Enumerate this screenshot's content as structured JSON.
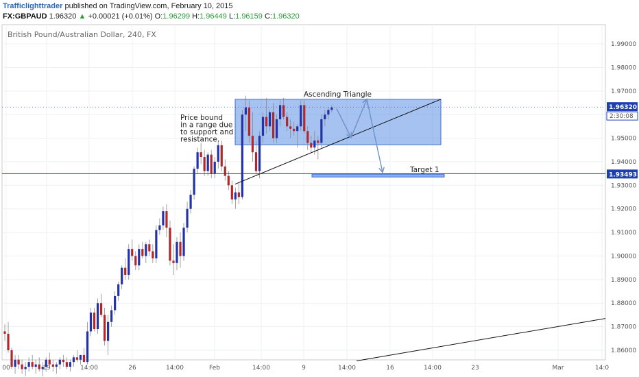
{
  "header": {
    "author": "Trafficlighttrader",
    "published_text": "published on TradingView.com, February 10, 2015",
    "symbol": "FX:GBPAUD",
    "last": "1.96320",
    "change": "+0.00021 (+0.01%)",
    "o_label": "O:",
    "o_value": "1.96299",
    "h_label": "H:",
    "h_value": "1.96449",
    "l_label": "L:",
    "l_value": "1.96159",
    "c_label": "C:",
    "c_value": "1.96320"
  },
  "chart_title": "British Pound/Australian Dollar, 240, FX",
  "price_tags": {
    "last_price": "1.96320",
    "countdown": "2:30:08",
    "target_price": "1.93493"
  },
  "annotations": {
    "range_note": [
      "Price bound",
      "in a range due",
      "to support and",
      "resistance."
    ],
    "pattern": "Ascending Triangle",
    "target": "Target 1"
  },
  "colors": {
    "bull": "#2233aa",
    "bear": "#b3262a",
    "zone": "#5b8fe6",
    "hline": "#1f3fb0",
    "green": "#2a9d3a"
  },
  "chart_data": {
    "type": "candlestick",
    "title": "British Pound/Australian Dollar, 240, FX",
    "ylim": [
      1.853,
      1.997
    ],
    "y_ticks": [
      "1.99000",
      "1.98000",
      "1.97000",
      "1.96000",
      "1.95000",
      "1.94000",
      "1.93000",
      "1.92000",
      "1.91000",
      "1.90000",
      "1.89000",
      "1.88000",
      "1.87000",
      "1.86000"
    ],
    "x_tick_labels": [
      "00",
      "19",
      "14:00",
      "26",
      "14:00",
      "Feb",
      "14:00",
      "9",
      "14:00",
      "16",
      "14:00",
      "23",
      "Mar",
      "14:0"
    ],
    "horizontal_level": 1.93493,
    "last_price": 1.9632,
    "range_zone": [
      1.9472,
      1.9665
    ],
    "target_zone": [
      1.9335,
      1.9347
    ],
    "ohlc": [
      [
        1.868,
        1.871,
        1.864,
        1.867
      ],
      [
        1.867,
        1.872,
        1.859,
        1.86
      ],
      [
        1.86,
        1.861,
        1.852,
        1.853
      ],
      [
        1.853,
        1.858,
        1.85,
        1.856
      ],
      [
        1.856,
        1.858,
        1.852,
        1.854
      ],
      [
        1.854,
        1.856,
        1.85,
        1.852
      ],
      [
        1.852,
        1.855,
        1.849,
        1.853
      ],
      [
        1.853,
        1.857,
        1.851,
        1.855
      ],
      [
        1.855,
        1.858,
        1.852,
        1.853
      ],
      [
        1.853,
        1.856,
        1.85,
        1.854
      ],
      [
        1.854,
        1.857,
        1.851,
        1.852
      ],
      [
        1.852,
        1.855,
        1.849,
        1.853
      ],
      [
        1.853,
        1.857,
        1.851,
        1.856
      ],
      [
        1.856,
        1.859,
        1.853,
        1.854
      ],
      [
        1.854,
        1.856,
        1.851,
        1.853
      ],
      [
        1.853,
        1.855,
        1.85,
        1.854
      ],
      [
        1.854,
        1.857,
        1.852,
        1.856
      ],
      [
        1.856,
        1.858,
        1.853,
        1.855
      ],
      [
        1.855,
        1.857,
        1.852,
        1.853
      ],
      [
        1.853,
        1.856,
        1.851,
        1.855
      ],
      [
        1.855,
        1.858,
        1.853,
        1.857
      ],
      [
        1.857,
        1.86,
        1.855,
        1.856
      ],
      [
        1.856,
        1.858,
        1.854,
        1.858
      ],
      [
        1.858,
        1.861,
        1.856,
        1.855
      ],
      [
        1.855,
        1.872,
        1.854,
        1.868
      ],
      [
        1.868,
        1.878,
        1.866,
        1.876
      ],
      [
        1.876,
        1.878,
        1.868,
        1.869
      ],
      [
        1.869,
        1.882,
        1.867,
        1.88
      ],
      [
        1.88,
        1.884,
        1.874,
        1.875
      ],
      [
        1.875,
        1.878,
        1.862,
        1.864
      ],
      [
        1.864,
        1.875,
        1.858,
        1.872
      ],
      [
        1.872,
        1.879,
        1.87,
        1.877
      ],
      [
        1.877,
        1.885,
        1.875,
        1.883
      ],
      [
        1.883,
        1.889,
        1.881,
        1.888
      ],
      [
        1.888,
        1.896,
        1.886,
        1.895
      ],
      [
        1.895,
        1.899,
        1.89,
        1.892
      ],
      [
        1.892,
        1.905,
        1.89,
        1.903
      ],
      [
        1.903,
        1.907,
        1.898,
        1.9
      ],
      [
        1.9,
        1.902,
        1.894,
        1.896
      ],
      [
        1.896,
        1.905,
        1.894,
        1.903
      ],
      [
        1.903,
        1.906,
        1.899,
        1.9
      ],
      [
        1.9,
        1.906,
        1.897,
        1.905
      ],
      [
        1.905,
        1.907,
        1.9,
        1.902
      ],
      [
        1.902,
        1.905,
        1.897,
        1.899
      ],
      [
        1.899,
        1.913,
        1.897,
        1.911
      ],
      [
        1.911,
        1.916,
        1.909,
        1.913
      ],
      [
        1.913,
        1.921,
        1.911,
        1.919
      ],
      [
        1.919,
        1.922,
        1.908,
        1.912
      ],
      [
        1.912,
        1.915,
        1.896,
        1.898
      ],
      [
        1.898,
        1.905,
        1.892,
        1.897
      ],
      [
        1.897,
        1.908,
        1.894,
        1.906
      ],
      [
        1.906,
        1.91,
        1.895,
        1.9
      ],
      [
        1.9,
        1.914,
        1.898,
        1.912
      ],
      [
        1.912,
        1.923,
        1.91,
        1.92
      ],
      [
        1.92,
        1.928,
        1.918,
        1.926
      ],
      [
        1.926,
        1.938,
        1.924,
        1.937
      ],
      [
        1.937,
        1.946,
        1.935,
        1.944
      ],
      [
        1.944,
        1.948,
        1.939,
        1.942
      ],
      [
        1.942,
        1.945,
        1.934,
        1.936
      ],
      [
        1.936,
        1.944,
        1.934,
        1.943
      ],
      [
        1.943,
        1.945,
        1.933,
        1.935
      ],
      [
        1.935,
        1.942,
        1.933,
        1.94
      ],
      [
        1.94,
        1.949,
        1.937,
        1.947
      ],
      [
        1.947,
        1.949,
        1.936,
        1.938
      ],
      [
        1.938,
        1.941,
        1.932,
        1.934
      ],
      [
        1.934,
        1.936,
        1.928,
        1.93
      ],
      [
        1.93,
        1.932,
        1.922,
        1.924
      ],
      [
        1.924,
        1.929,
        1.92,
        1.927
      ],
      [
        1.927,
        1.931,
        1.922,
        1.925
      ],
      [
        1.925,
        1.962,
        1.924,
        1.96
      ],
      [
        1.96,
        1.968,
        1.953,
        1.963
      ],
      [
        1.963,
        1.966,
        1.948,
        1.951
      ],
      [
        1.951,
        1.961,
        1.94,
        1.944
      ],
      [
        1.944,
        1.949,
        1.934,
        1.936
      ],
      [
        1.936,
        1.953,
        1.933,
        1.951
      ],
      [
        1.951,
        1.961,
        1.948,
        1.959
      ],
      [
        1.959,
        1.967,
        1.952,
        1.955
      ],
      [
        1.955,
        1.962,
        1.953,
        1.961
      ],
      [
        1.961,
        1.965,
        1.948,
        1.95
      ],
      [
        1.95,
        1.96,
        1.948,
        1.958
      ],
      [
        1.958,
        1.966,
        1.955,
        1.964
      ],
      [
        1.964,
        1.967,
        1.958,
        1.959
      ],
      [
        1.959,
        1.961,
        1.953,
        1.955
      ],
      [
        1.955,
        1.958,
        1.95,
        1.954
      ],
      [
        1.954,
        1.957,
        1.951,
        1.953
      ],
      [
        1.953,
        1.956,
        1.946,
        1.955
      ],
      [
        1.955,
        1.966,
        1.953,
        1.964
      ],
      [
        1.964,
        1.966,
        1.952,
        1.953
      ],
      [
        1.953,
        1.955,
        1.945,
        1.948
      ],
      [
        1.948,
        1.951,
        1.944,
        1.946
      ],
      [
        1.946,
        1.953,
        1.943,
        1.949
      ],
      [
        1.949,
        1.951,
        1.941,
        1.948
      ],
      [
        1.948,
        1.96,
        1.946,
        1.958
      ],
      [
        1.958,
        1.962,
        1.955,
        1.96
      ],
      [
        1.96,
        1.963,
        1.958,
        1.962
      ],
      [
        1.962,
        1.964,
        1.961,
        1.963
      ]
    ]
  }
}
